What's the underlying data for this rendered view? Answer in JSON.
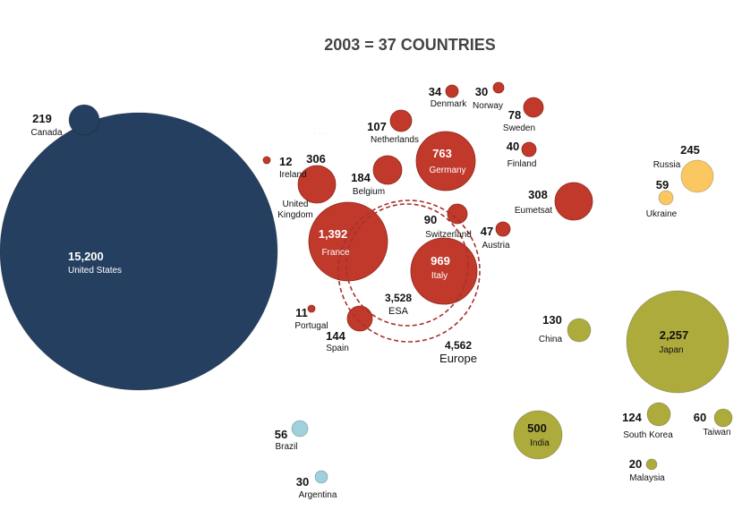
{
  "chart_data": {
    "type": "bubble",
    "title": "2003 = 37 COUNTRIES",
    "faint_text": "· · · · ·",
    "colors": {
      "north_america": "#243f60",
      "europe": "#c0392b",
      "russia": "#fbc761",
      "south_america": "#9ed0de",
      "asia": "#adab3c"
    },
    "points": [
      {
        "name": "United States",
        "value": "15,200",
        "region": "north_america"
      },
      {
        "name": "Canada",
        "value": "219",
        "region": "north_america"
      },
      {
        "name": "Ireland",
        "value": "12",
        "region": "europe"
      },
      {
        "name": "United Kingdom",
        "value": "306",
        "region": "europe"
      },
      {
        "name": "Belgium",
        "value": "184",
        "region": "europe"
      },
      {
        "name": "Netherlands",
        "value": "107",
        "region": "europe"
      },
      {
        "name": "Germany",
        "value": "763",
        "region": "europe"
      },
      {
        "name": "Denmark",
        "value": "34",
        "region": "europe"
      },
      {
        "name": "Norway",
        "value": "30",
        "region": "europe"
      },
      {
        "name": "Sweden",
        "value": "78",
        "region": "europe"
      },
      {
        "name": "Finland",
        "value": "40",
        "region": "europe"
      },
      {
        "name": "Eumetsat",
        "value": "308",
        "region": "europe"
      },
      {
        "name": "France",
        "value": "1,392",
        "region": "europe"
      },
      {
        "name": "Switzerland",
        "value": "90",
        "region": "europe"
      },
      {
        "name": "Austria",
        "value": "47",
        "region": "europe"
      },
      {
        "name": "Italy",
        "value": "969",
        "region": "europe"
      },
      {
        "name": "Portugal",
        "value": "11",
        "region": "europe"
      },
      {
        "name": "Spain",
        "value": "144",
        "region": "europe"
      },
      {
        "name": "Russia",
        "value": "245",
        "region": "russia"
      },
      {
        "name": "Ukraine",
        "value": "59",
        "region": "russia"
      },
      {
        "name": "China",
        "value": "130",
        "region": "asia"
      },
      {
        "name": "Japan",
        "value": "2,257",
        "region": "asia"
      },
      {
        "name": "India",
        "value": "500",
        "region": "asia"
      },
      {
        "name": "South Korea",
        "value": "124",
        "region": "asia"
      },
      {
        "name": "Taiwan",
        "value": "60",
        "region": "asia"
      },
      {
        "name": "Malaysia",
        "value": "20",
        "region": "asia"
      },
      {
        "name": "Brazil",
        "value": "56",
        "region": "south_america"
      },
      {
        "name": "Argentina",
        "value": "30",
        "region": "south_america"
      }
    ],
    "groups": [
      {
        "name": "ESA",
        "value": "3,528"
      },
      {
        "name": "Europe",
        "value": "4,562"
      }
    ]
  }
}
